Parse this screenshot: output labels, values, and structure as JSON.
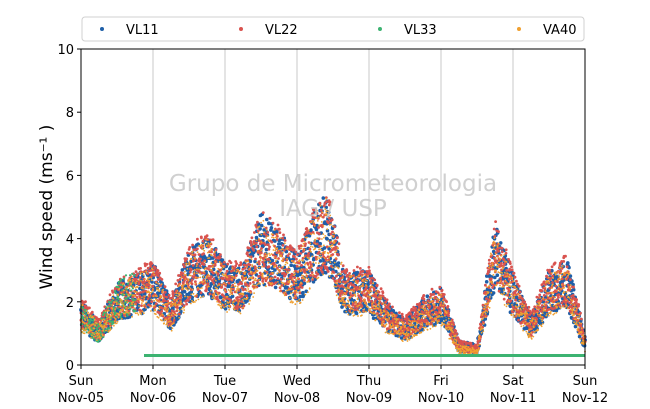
{
  "chart_data": {
    "type": "scatter",
    "title": "",
    "ylabel": "Wind speed (ms⁻¹ )",
    "xlabel": "",
    "ylim": [
      0,
      10
    ],
    "yticks": [
      0,
      2,
      4,
      6,
      8,
      10
    ],
    "xlim": [
      "2017-11-05 00:00",
      "2017-11-12 00:00"
    ],
    "xticks": [
      {
        "day": "Sun",
        "date": "Nov-05"
      },
      {
        "day": "Mon",
        "date": "Nov-06"
      },
      {
        "day": "Tue",
        "date": "Nov-07"
      },
      {
        "day": "Wed",
        "date": "Nov-08"
      },
      {
        "day": "Thu",
        "date": "Nov-09"
      },
      {
        "day": "Fri",
        "date": "Nov-10"
      },
      {
        "day": "Sat",
        "date": "Nov-11"
      },
      {
        "day": "Sun",
        "date": "Nov-12"
      }
    ],
    "grid": "vertical",
    "legend_position": "top",
    "watermark": [
      "Grupo de Micrometeorologia",
      "IAG / USP"
    ],
    "series": [
      {
        "name": "VL11",
        "color": "#1f5fa8",
        "profile": [
          [
            "2017-11-05 00:00",
            1.6
          ],
          [
            "2017-11-05 06:00",
            1.0
          ],
          [
            "2017-11-05 12:00",
            2.0
          ],
          [
            "2017-11-05 18:00",
            2.2
          ],
          [
            "2017-11-06 00:00",
            2.5
          ],
          [
            "2017-11-06 06:00",
            1.6
          ],
          [
            "2017-11-06 12:00",
            2.8
          ],
          [
            "2017-11-06 18:00",
            3.2
          ],
          [
            "2017-11-07 00:00",
            2.5
          ],
          [
            "2017-11-07 06:00",
            2.4
          ],
          [
            "2017-11-07 12:00",
            3.7
          ],
          [
            "2017-11-07 18:00",
            3.3
          ],
          [
            "2017-11-08 00:00",
            2.7
          ],
          [
            "2017-11-08 06:00",
            3.8
          ],
          [
            "2017-11-08 10:00",
            4.2
          ],
          [
            "2017-11-08 16:00",
            2.3
          ],
          [
            "2017-11-09 00:00",
            2.3
          ],
          [
            "2017-11-09 06:00",
            1.5
          ],
          [
            "2017-11-09 12:00",
            1.1
          ],
          [
            "2017-11-09 18:00",
            1.6
          ],
          [
            "2017-11-10 00:00",
            1.9
          ],
          [
            "2017-11-10 06:00",
            0.6
          ],
          [
            "2017-11-10 12:00",
            0.5
          ],
          [
            "2017-11-10 18:00",
            3.5
          ],
          [
            "2017-11-11 00:00",
            2.2
          ],
          [
            "2017-11-11 06:00",
            1.2
          ],
          [
            "2017-11-11 12:00",
            2.3
          ],
          [
            "2017-11-11 18:00",
            2.6
          ],
          [
            "2017-11-12 00:00",
            0.7
          ]
        ]
      },
      {
        "name": "VL22",
        "color": "#d9534f",
        "profile": [
          [
            "2017-11-05 00:00",
            1.7
          ],
          [
            "2017-11-05 06:00",
            1.1
          ],
          [
            "2017-11-05 12:00",
            2.1
          ],
          [
            "2017-11-05 18:00",
            2.3
          ],
          [
            "2017-11-06 00:00",
            2.6
          ],
          [
            "2017-11-06 06:00",
            1.7
          ],
          [
            "2017-11-06 12:00",
            2.9
          ],
          [
            "2017-11-06 18:00",
            3.3
          ],
          [
            "2017-11-07 00:00",
            2.6
          ],
          [
            "2017-11-07 06:00",
            2.5
          ],
          [
            "2017-11-07 12:00",
            3.8
          ],
          [
            "2017-11-07 18:00",
            3.4
          ],
          [
            "2017-11-08 00:00",
            2.8
          ],
          [
            "2017-11-08 06:00",
            3.9
          ],
          [
            "2017-11-08 10:00",
            4.3
          ],
          [
            "2017-11-08 16:00",
            2.4
          ],
          [
            "2017-11-09 00:00",
            2.4
          ],
          [
            "2017-11-09 06:00",
            1.6
          ],
          [
            "2017-11-09 12:00",
            1.2
          ],
          [
            "2017-11-09 18:00",
            1.7
          ],
          [
            "2017-11-10 00:00",
            2.0
          ],
          [
            "2017-11-10 06:00",
            0.6
          ],
          [
            "2017-11-10 12:00",
            0.5
          ],
          [
            "2017-11-10 18:00",
            3.6
          ],
          [
            "2017-11-11 00:00",
            2.3
          ],
          [
            "2017-11-11 06:00",
            1.3
          ],
          [
            "2017-11-11 12:00",
            2.4
          ],
          [
            "2017-11-11 18:00",
            2.7
          ],
          [
            "2017-11-12 00:00",
            0.8
          ]
        ]
      },
      {
        "name": "VL33",
        "color": "#3cb371",
        "profile": [
          [
            "2017-11-05 00:00",
            1.5
          ],
          [
            "2017-11-05 06:00",
            1.0
          ],
          [
            "2017-11-05 12:00",
            2.0
          ],
          [
            "2017-11-05 18:00",
            2.4
          ]
        ],
        "flat_segment": {
          "from": "2017-11-05 21:00",
          "to": "2017-11-12 00:00",
          "value": 0.3
        }
      },
      {
        "name": "VA40",
        "color": "#f0a030",
        "profile": [
          [
            "2017-11-05 00:00",
            1.5
          ],
          [
            "2017-11-05 06:00",
            1.0
          ],
          [
            "2017-11-05 12:00",
            1.9
          ],
          [
            "2017-11-05 18:00",
            2.2
          ],
          [
            "2017-11-06 00:00",
            2.4
          ],
          [
            "2017-11-06 06:00",
            1.5
          ],
          [
            "2017-11-06 12:00",
            2.7
          ],
          [
            "2017-11-06 18:00",
            3.1
          ],
          [
            "2017-11-07 00:00",
            2.4
          ],
          [
            "2017-11-07 06:00",
            2.3
          ],
          [
            "2017-11-07 12:00",
            3.6
          ],
          [
            "2017-11-07 18:00",
            3.2
          ],
          [
            "2017-11-08 00:00",
            2.6
          ],
          [
            "2017-11-08 06:00",
            3.7
          ],
          [
            "2017-11-08 10:00",
            4.1
          ],
          [
            "2017-11-08 16:00",
            2.2
          ],
          [
            "2017-11-09 00:00",
            2.2
          ],
          [
            "2017-11-09 06:00",
            1.4
          ],
          [
            "2017-11-09 12:00",
            1.0
          ],
          [
            "2017-11-09 18:00",
            1.5
          ],
          [
            "2017-11-10 00:00",
            1.8
          ],
          [
            "2017-11-10 06:00",
            0.5
          ],
          [
            "2017-11-10 12:00",
            0.4
          ],
          [
            "2017-11-10 18:00",
            3.4
          ],
          [
            "2017-11-11 00:00",
            2.1
          ],
          [
            "2017-11-11 06:00",
            1.1
          ],
          [
            "2017-11-11 12:00",
            2.2
          ],
          [
            "2017-11-11 18:00",
            2.5
          ],
          [
            "2017-11-12 00:00",
            0.6
          ]
        ]
      }
    ]
  }
}
